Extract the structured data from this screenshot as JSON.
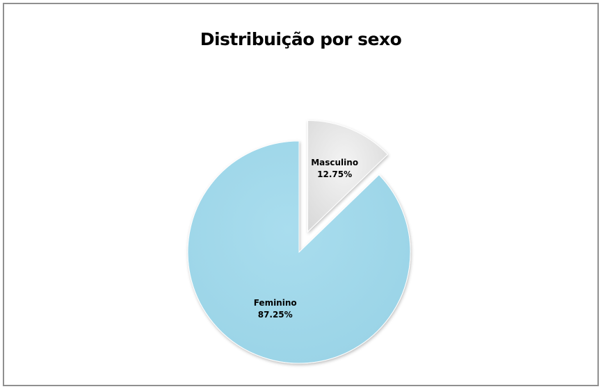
{
  "chart_data": {
    "type": "pie",
    "title": "Distribuição por sexo",
    "slices": [
      {
        "category": "Masculino",
        "value": 12.75,
        "label": "12.75%",
        "color": "#e7e7e7",
        "exploded": true
      },
      {
        "category": "Feminino",
        "value": 87.25,
        "label": "87.25%",
        "color": "#a7dcec",
        "exploded": false
      }
    ],
    "legend": "none",
    "data_labels": "inside"
  }
}
